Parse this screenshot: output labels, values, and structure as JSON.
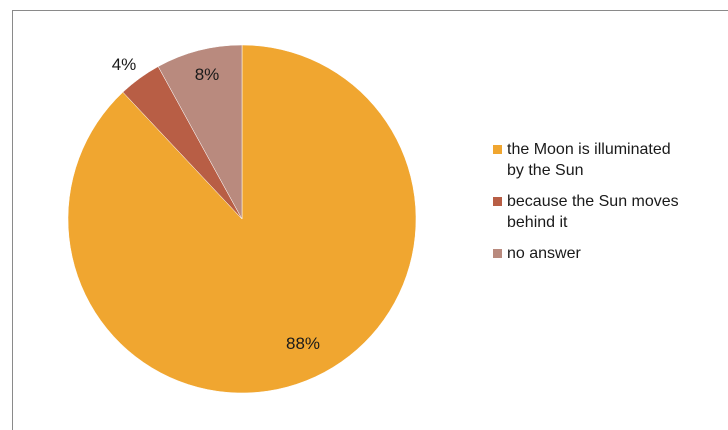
{
  "chart_data": {
    "type": "pie",
    "title": "",
    "start_angle_deg": 0,
    "direction": "clockwise",
    "slices": [
      {
        "label": "the Moon is illuminated by the Sun",
        "legend_lines": [
          "the Moon is illuminated",
          "by the Sun"
        ],
        "value": 88,
        "data_label": "88%",
        "color": "#f0a630"
      },
      {
        "label": "because the Sun moves behind it",
        "legend_lines": [
          "because the Sun moves",
          "behind it"
        ],
        "value": 4,
        "data_label": "4%",
        "color": "#b85e45"
      },
      {
        "label": "no answer",
        "legend_lines": [
          "no answer"
        ],
        "value": 8,
        "data_label": "8%",
        "color": "#b98a7e"
      }
    ],
    "legend_position": "right"
  }
}
